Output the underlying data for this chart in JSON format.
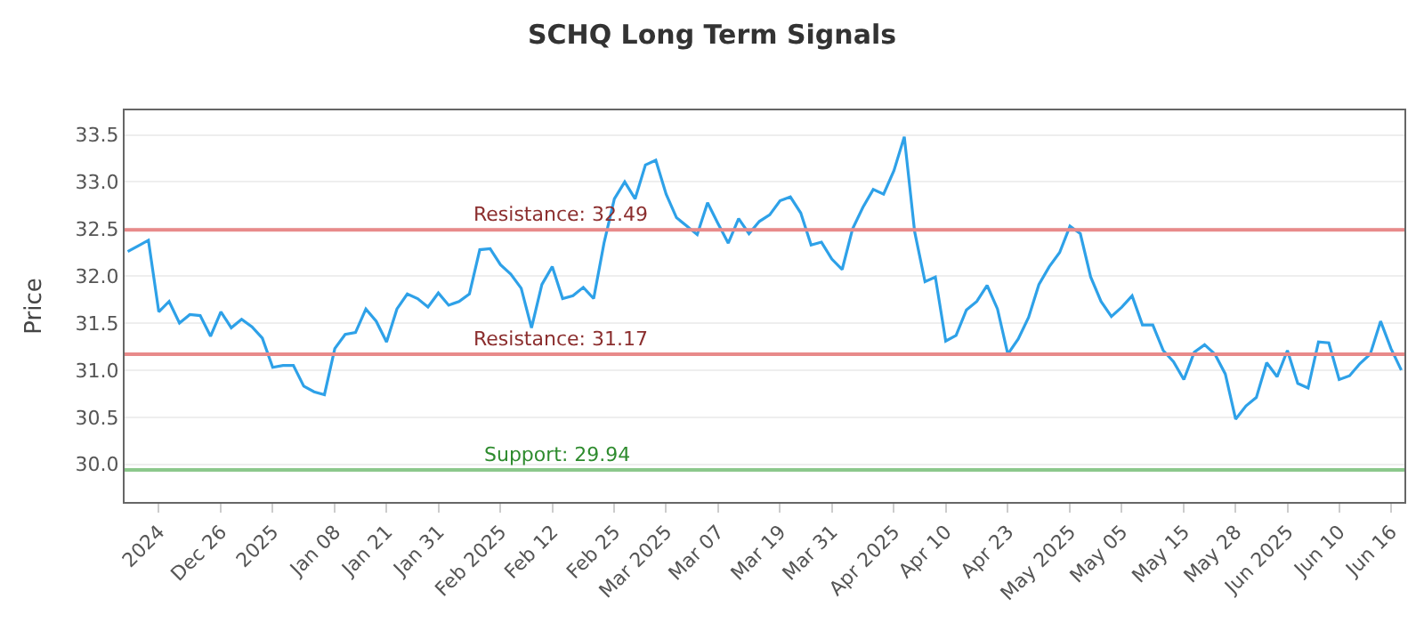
{
  "chart_data": {
    "type": "line",
    "title": "SCHQ Long Term Signals",
    "ylabel": "Price",
    "categories": [
      null,
      null,
      null,
      "2024",
      null,
      null,
      null,
      null,
      null,
      "Dec 26",
      null,
      null,
      null,
      null,
      "2025",
      null,
      null,
      null,
      null,
      null,
      "Jan 08",
      null,
      null,
      null,
      null,
      "Jan 21",
      null,
      null,
      null,
      null,
      "Jan 31",
      null,
      null,
      null,
      null,
      null,
      "Feb 2025",
      null,
      null,
      null,
      null,
      "Feb 12",
      null,
      null,
      null,
      null,
      null,
      "Feb 25",
      null,
      null,
      null,
      null,
      "Mar 2025",
      null,
      null,
      null,
      null,
      "Mar 07",
      null,
      null,
      null,
      null,
      null,
      "Mar 19",
      null,
      null,
      null,
      null,
      "Mar 31",
      null,
      null,
      null,
      null,
      null,
      "Apr 2025",
      null,
      null,
      null,
      null,
      "Apr 10",
      null,
      null,
      null,
      null,
      null,
      "Apr 23",
      null,
      null,
      null,
      null,
      null,
      "May 2025",
      null,
      null,
      null,
      null,
      "May 05",
      null,
      null,
      null,
      null,
      null,
      "May 15",
      null,
      null,
      null,
      null,
      "May 28",
      null,
      null,
      null,
      null,
      "Jun 2025",
      null,
      null,
      null,
      null,
      "Jun 10",
      null,
      null,
      null,
      null,
      "Jun 16",
      null
    ],
    "series": [
      {
        "color": "#2ea1e8",
        "values": [
          32.26,
          32.32,
          32.38,
          31.62,
          31.73,
          31.5,
          31.59,
          31.58,
          31.36,
          31.62,
          31.45,
          31.54,
          31.46,
          31.34,
          31.03,
          31.05,
          31.05,
          30.83,
          30.77,
          30.74,
          31.23,
          31.38,
          31.4,
          31.65,
          31.52,
          31.3,
          31.65,
          31.81,
          31.76,
          31.67,
          31.82,
          31.69,
          31.73,
          31.81,
          32.28,
          32.29,
          32.12,
          32.02,
          31.87,
          31.45,
          31.91,
          32.1,
          31.76,
          31.79,
          31.88,
          31.76,
          32.35,
          32.82,
          33.0,
          32.82,
          33.18,
          33.23,
          32.87,
          32.62,
          32.53,
          32.44,
          32.78,
          32.56,
          32.35,
          32.61,
          32.45,
          32.58,
          32.65,
          32.8,
          32.84,
          32.67,
          32.33,
          32.36,
          32.18,
          32.07,
          32.5,
          32.73,
          32.92,
          32.87,
          33.12,
          33.48,
          32.47,
          31.94,
          31.99,
          31.31,
          31.37,
          31.64,
          31.73,
          31.9,
          31.65,
          31.17,
          31.33,
          31.56,
          31.91,
          32.1,
          32.25,
          32.53,
          32.45,
          31.99,
          31.73,
          31.57,
          31.67,
          31.79,
          31.48,
          31.48,
          31.21,
          31.09,
          30.9,
          31.19,
          31.27,
          31.17,
          30.96,
          30.48,
          30.62,
          30.71,
          31.08,
          30.93,
          31.21,
          30.86,
          30.81,
          31.3,
          31.29,
          30.9,
          30.94,
          31.07,
          31.17,
          31.52,
          31.23,
          31.0
        ]
      }
    ],
    "ylim": [
      29.6,
      33.76
    ],
    "yticks": [
      {
        "value": 30,
        "label": "30.0"
      },
      {
        "value": 30.5,
        "label": "30.5"
      },
      {
        "value": 31,
        "label": "31.0"
      },
      {
        "value": 31.5,
        "label": "31.5"
      },
      {
        "value": 32,
        "label": "32.0"
      },
      {
        "value": 32.5,
        "label": "32.5"
      },
      {
        "value": 33,
        "label": "33.0"
      },
      {
        "value": 33.5,
        "label": "33.5"
      }
    ],
    "grid": "y",
    "marker": "none",
    "line_style": "solid",
    "ref_lines": [
      {
        "axis": "y",
        "value": 32.49,
        "label": "Resistance: 32.49",
        "color": "#e88a8a"
      },
      {
        "axis": "y",
        "value": 31.17,
        "label": "Resistance: 31.17",
        "color": "#e88a8a"
      },
      {
        "axis": "y",
        "value": 29.94,
        "label": "Support: 29.94",
        "color": "#8cc88c"
      }
    ]
  }
}
